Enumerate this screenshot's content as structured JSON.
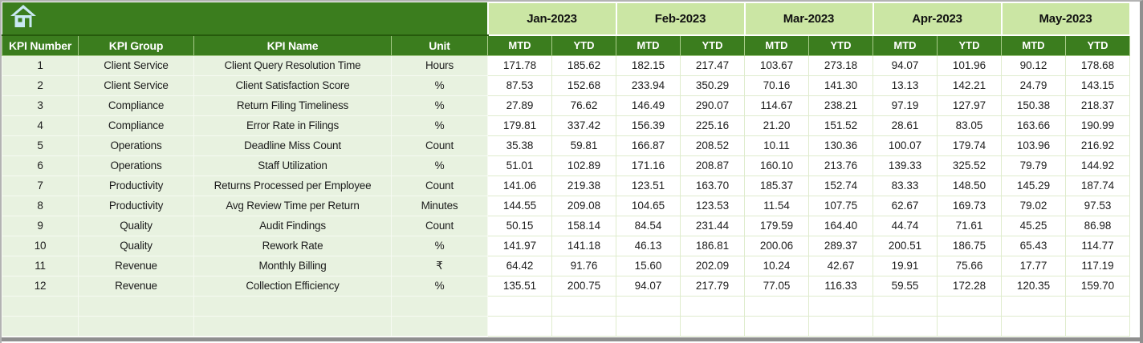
{
  "banner": {
    "home_icon": "home"
  },
  "table": {
    "header_columns": [
      "KPI Number",
      "KPI Group",
      "KPI Name",
      "Unit"
    ],
    "month_headers": [
      "Jan-2023",
      "Feb-2023",
      "Mar-2023",
      "Apr-2023",
      "May-2023"
    ],
    "sub_headers": [
      "MTD",
      "YTD"
    ],
    "rows": [
      {
        "num": "1",
        "group": "Client Service",
        "name": "Client Query Resolution Time",
        "unit": "Hours",
        "values": [
          "171.78",
          "185.62",
          "182.15",
          "217.47",
          "103.67",
          "273.18",
          "94.07",
          "101.96",
          "90.12",
          "178.68"
        ]
      },
      {
        "num": "2",
        "group": "Client Service",
        "name": "Client Satisfaction Score",
        "unit": "%",
        "values": [
          "87.53",
          "152.68",
          "233.94",
          "350.29",
          "70.16",
          "141.30",
          "13.13",
          "142.21",
          "24.79",
          "143.15"
        ]
      },
      {
        "num": "3",
        "group": "Compliance",
        "name": "Return Filing Timeliness",
        "unit": "%",
        "values": [
          "27.89",
          "76.62",
          "146.49",
          "290.07",
          "114.67",
          "238.21",
          "97.19",
          "127.97",
          "150.38",
          "218.37"
        ]
      },
      {
        "num": "4",
        "group": "Compliance",
        "name": "Error Rate in Filings",
        "unit": "%",
        "values": [
          "179.81",
          "337.42",
          "156.39",
          "225.16",
          "21.20",
          "151.52",
          "28.61",
          "83.05",
          "163.66",
          "190.99"
        ]
      },
      {
        "num": "5",
        "group": "Operations",
        "name": "Deadline Miss Count",
        "unit": "Count",
        "values": [
          "35.38",
          "59.81",
          "166.87",
          "208.52",
          "10.11",
          "130.36",
          "100.07",
          "179.74",
          "103.96",
          "216.92"
        ]
      },
      {
        "num": "6",
        "group": "Operations",
        "name": "Staff Utilization",
        "unit": "%",
        "values": [
          "51.01",
          "102.89",
          "171.16",
          "208.87",
          "160.10",
          "213.76",
          "139.33",
          "325.52",
          "79.79",
          "144.92"
        ]
      },
      {
        "num": "7",
        "group": "Productivity",
        "name": "Returns Processed per Employee",
        "unit": "Count",
        "values": [
          "141.06",
          "219.38",
          "123.51",
          "163.70",
          "185.37",
          "152.74",
          "83.33",
          "148.50",
          "145.29",
          "187.74"
        ]
      },
      {
        "num": "8",
        "group": "Productivity",
        "name": "Avg Review Time per Return",
        "unit": "Minutes",
        "values": [
          "144.55",
          "209.08",
          "104.65",
          "123.53",
          "11.54",
          "107.75",
          "62.67",
          "169.73",
          "79.02",
          "97.53"
        ]
      },
      {
        "num": "9",
        "group": "Quality",
        "name": "Audit Findings",
        "unit": "Count",
        "values": [
          "50.15",
          "158.14",
          "84.54",
          "231.44",
          "179.59",
          "164.40",
          "44.74",
          "71.61",
          "45.25",
          "86.98"
        ]
      },
      {
        "num": "10",
        "group": "Quality",
        "name": "Rework Rate",
        "unit": "%",
        "values": [
          "141.97",
          "141.18",
          "46.13",
          "186.81",
          "200.06",
          "289.37",
          "200.51",
          "186.75",
          "65.43",
          "114.77"
        ]
      },
      {
        "num": "11",
        "group": "Revenue",
        "name": "Monthly Billing",
        "unit": "₹",
        "values": [
          "64.42",
          "91.76",
          "15.60",
          "202.09",
          "10.24",
          "42.67",
          "19.91",
          "75.66",
          "17.77",
          "117.19"
        ]
      },
      {
        "num": "12",
        "group": "Revenue",
        "name": "Collection Efficiency",
        "unit": "%",
        "values": [
          "135.51",
          "200.75",
          "94.07",
          "217.79",
          "77.05",
          "116.33",
          "59.55",
          "172.28",
          "120.35",
          "159.70"
        ]
      }
    ],
    "empty_row_count": 2
  },
  "colors": {
    "dark_green": "#3b7d1e",
    "light_green": "#cbe6a4",
    "pale_green": "#e8f2e0",
    "numeric_grid": "#dfeccd",
    "icon_blue": "#c9e9f3",
    "frame_gray": "#8f8f8f"
  }
}
